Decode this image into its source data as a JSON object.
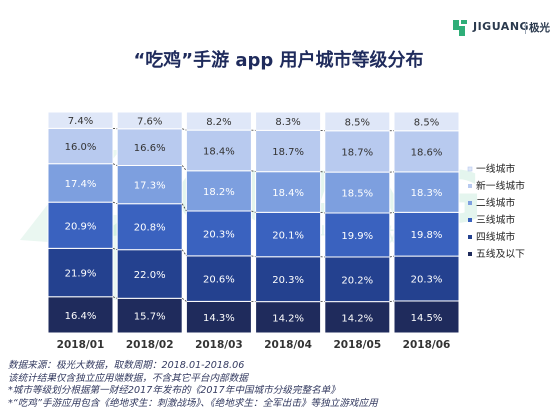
{
  "brand": {
    "logo_text": "JIGUANG",
    "logo_cn": "极光",
    "watermark_text": "JIGUANG",
    "watermark_cn": "极光大数据",
    "accent": "#2fae78"
  },
  "notes": [
    "数据来源：极光大数据，取数周期：2018.01-2018.06",
    "该统计结果仅含独立应用端数据，不含其它平台内部数据",
    "*城市等级划分根据第一财经2017年发布的《2017年中国城市分级完整名单》",
    "*“吃鸡”手游应用包含《绝地求生：刺激战场》、《绝地求生：全军出击》等独立游戏应用"
  ],
  "chart_data": {
    "type": "bar",
    "stacked": true,
    "normalized": true,
    "title": "“吃鸡”手游 app 用户城市等级分布",
    "categories": [
      "2018/01",
      "2018/02",
      "2018/03",
      "2018/04",
      "2018/05",
      "2018/06"
    ],
    "series": [
      {
        "name": "五线及以下",
        "color": "#1f2b5c",
        "label_color": "#ffffff",
        "values": [
          16.4,
          15.7,
          14.3,
          14.2,
          14.2,
          14.5
        ]
      },
      {
        "name": "四线城市",
        "color": "#24418f",
        "label_color": "#ffffff",
        "values": [
          21.9,
          22.0,
          20.6,
          20.3,
          20.2,
          20.3
        ]
      },
      {
        "name": "三线城市",
        "color": "#3a62bf",
        "label_color": "#ffffff",
        "values": [
          20.9,
          20.8,
          20.3,
          20.1,
          19.9,
          19.8
        ]
      },
      {
        "name": "二线城市",
        "color": "#7d9fdf",
        "label_color": "#ffffff",
        "values": [
          17.4,
          17.3,
          18.2,
          18.4,
          18.5,
          18.3
        ]
      },
      {
        "name": "新一线城市",
        "color": "#b8caef",
        "label_color": "#333333",
        "values": [
          16.0,
          16.6,
          18.4,
          18.7,
          18.7,
          18.6
        ]
      },
      {
        "name": "一线城市",
        "color": "#dfe7f8",
        "label_color": "#333333",
        "values": [
          7.4,
          7.6,
          8.2,
          8.3,
          8.5,
          8.5
        ]
      }
    ],
    "data_labels": [
      [
        "16.4%",
        "15.7%",
        "14.3%",
        "14.2%",
        "14.2%",
        "14.5%"
      ],
      [
        "21.9%",
        "22.0%",
        "20.6%",
        "20.3%",
        "20.2%",
        "20.3%"
      ],
      [
        "20.9%",
        "20.8%",
        "20.3%",
        "20.1%",
        "19.9%",
        "19.8%"
      ],
      [
        "17.4%",
        "17.3%",
        "18.2%",
        "18.4%",
        "18.5%",
        "18.3%"
      ],
      [
        "16.0%",
        "16.6%",
        "18.4%",
        "18.7%",
        "18.7%",
        "18.6%"
      ],
      [
        "7.4%",
        "7.6%",
        "8.2%",
        "8.3%",
        "8.5%",
        "8.5%"
      ]
    ],
    "legend_order": [
      "一线城市",
      "新一线城市",
      "二线城市",
      "三线城市",
      "四线城市",
      "五线及以下"
    ],
    "legend_position": "right",
    "connector_lines": "dashed",
    "grid": false
  }
}
